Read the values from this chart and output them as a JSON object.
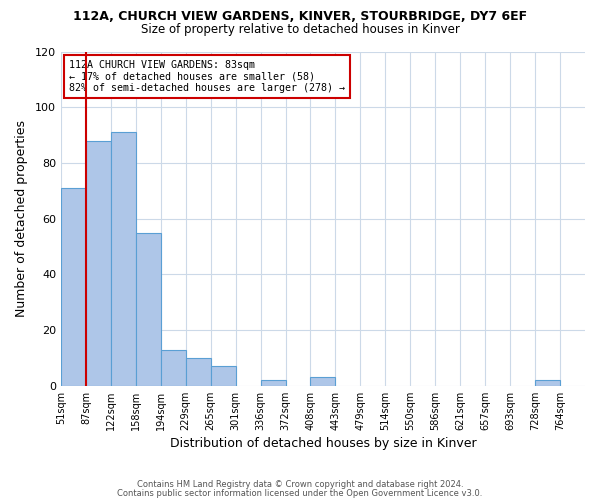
{
  "title_line1": "112A, CHURCH VIEW GARDENS, KINVER, STOURBRIDGE, DY7 6EF",
  "title_line2": "Size of property relative to detached houses in Kinver",
  "xlabel": "Distribution of detached houses by size in Kinver",
  "ylabel": "Number of detached properties",
  "bin_labels": [
    "51sqm",
    "87sqm",
    "122sqm",
    "158sqm",
    "194sqm",
    "229sqm",
    "265sqm",
    "301sqm",
    "336sqm",
    "372sqm",
    "408sqm",
    "443sqm",
    "479sqm",
    "514sqm",
    "550sqm",
    "586sqm",
    "621sqm",
    "657sqm",
    "693sqm",
    "728sqm",
    "764sqm"
  ],
  "bar_heights": [
    71,
    88,
    91,
    55,
    13,
    10,
    7,
    0,
    2,
    0,
    3,
    0,
    0,
    0,
    0,
    0,
    0,
    0,
    0,
    2,
    0
  ],
  "bar_color": "#aec6e8",
  "bar_edge_color": "#5a9fd4",
  "vline_index": 1,
  "vline_color": "#cc0000",
  "annotation_text": "112A CHURCH VIEW GARDENS: 83sqm\n← 17% of detached houses are smaller (58)\n82% of semi-detached houses are larger (278) →",
  "annotation_box_color": "#ffffff",
  "annotation_box_edge": "#cc0000",
  "ylim": [
    0,
    120
  ],
  "yticks": [
    0,
    20,
    40,
    60,
    80,
    100,
    120
  ],
  "footer_line1": "Contains HM Land Registry data © Crown copyright and database right 2024.",
  "footer_line2": "Contains public sector information licensed under the Open Government Licence v3.0.",
  "background_color": "#ffffff",
  "grid_color": "#ccd9e8"
}
